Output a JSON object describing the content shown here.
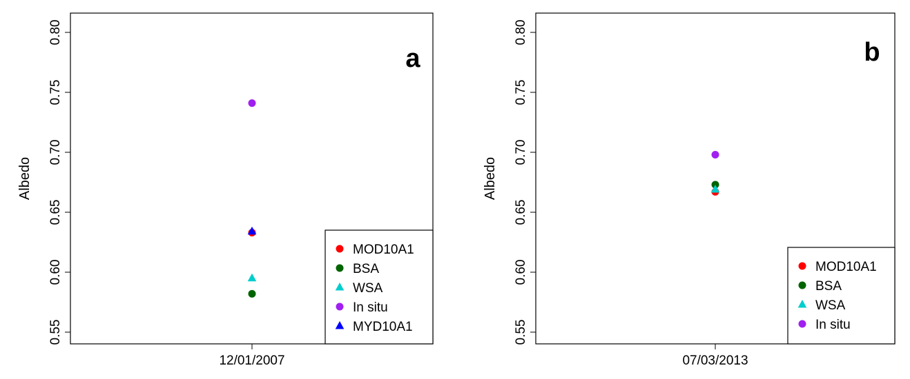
{
  "chart_data": [
    {
      "type": "scatter",
      "panel_label": "a",
      "xlabel": "",
      "ylabel": "Albedo",
      "categories": [
        "12/01/2007"
      ],
      "ylim": [
        0.55,
        0.8
      ],
      "yticks": [
        "0.55",
        "0.60",
        "0.65",
        "0.70",
        "0.75",
        "0.80"
      ],
      "legend_position": "bottom-right",
      "series": [
        {
          "name": "MOD10A1",
          "marker": "circle",
          "color": "#ff0000",
          "values": [
            0.633
          ]
        },
        {
          "name": "BSA",
          "marker": "circle",
          "color": "#006400",
          "values": [
            0.582
          ]
        },
        {
          "name": "WSA",
          "marker": "triangle",
          "color": "#00cdcd",
          "values": [
            0.595
          ]
        },
        {
          "name": "In situ",
          "marker": "circle",
          "color": "#a020f0",
          "values": [
            0.741
          ]
        },
        {
          "name": "MYD10A1",
          "marker": "triangle",
          "color": "#0000ff",
          "values": [
            0.634
          ]
        }
      ]
    },
    {
      "type": "scatter",
      "panel_label": "b",
      "xlabel": "",
      "ylabel": "Albedo",
      "categories": [
        "07/03/2013"
      ],
      "ylim": [
        0.55,
        0.8
      ],
      "yticks": [
        "0.55",
        "0.60",
        "0.65",
        "0.70",
        "0.75",
        "0.80"
      ],
      "legend_position": "bottom-right",
      "series": [
        {
          "name": "MOD10A1",
          "marker": "circle",
          "color": "#ff0000",
          "values": [
            0.667
          ]
        },
        {
          "name": "BSA",
          "marker": "circle",
          "color": "#006400",
          "values": [
            0.673
          ]
        },
        {
          "name": "WSA",
          "marker": "triangle",
          "color": "#00cdcd",
          "values": [
            0.669
          ]
        },
        {
          "name": "In situ",
          "marker": "circle",
          "color": "#a020f0",
          "values": [
            0.698
          ]
        }
      ]
    }
  ]
}
